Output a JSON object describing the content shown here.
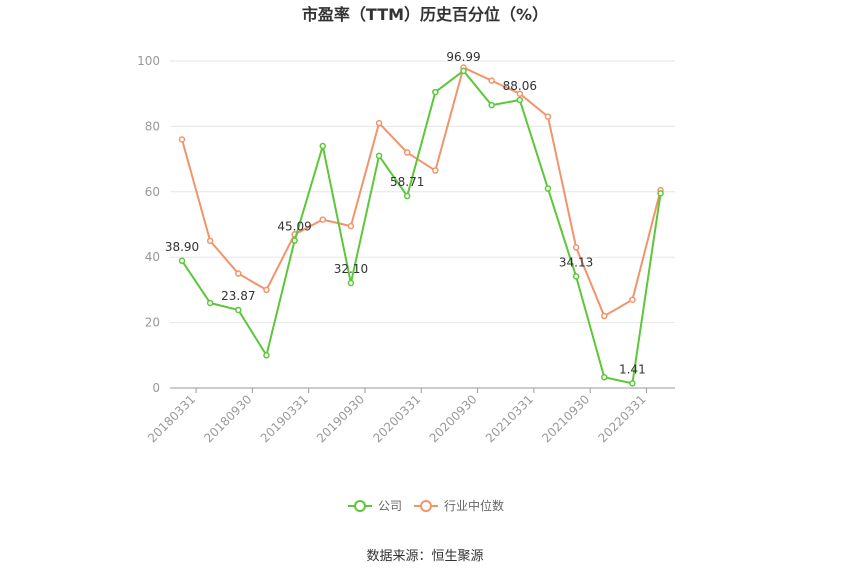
{
  "chart_data": {
    "type": "line",
    "title": "市盈率（TTM）历史百分位（%）",
    "xlabel": "",
    "ylabel": "",
    "ylim": [
      0,
      100
    ],
    "yticks": [
      0,
      20,
      40,
      60,
      80,
      100
    ],
    "x_tick_labels": [
      "20180331",
      "20180930",
      "20190331",
      "20190930",
      "20200331",
      "20200930",
      "20210331",
      "20210930",
      "20220331"
    ],
    "categories": [
      "20180331",
      "20180630",
      "20180930",
      "20181231",
      "20190331",
      "20190630",
      "20190930",
      "20191231",
      "20200331",
      "20200630",
      "20200930",
      "20201231",
      "20210331",
      "20210630",
      "20210930",
      "20211231",
      "20220331",
      "20220630"
    ],
    "series": [
      {
        "name": "公司",
        "color": "#5cc73a",
        "values": [
          38.9,
          26.0,
          23.87,
          10.0,
          45.09,
          74.0,
          32.1,
          71.0,
          58.71,
          90.5,
          96.99,
          86.5,
          88.06,
          61.0,
          34.13,
          3.3,
          1.41,
          59.5
        ]
      },
      {
        "name": "行业中位数",
        "color": "#f2946b",
        "values": [
          76.0,
          45.0,
          35.0,
          30.0,
          47.0,
          51.5,
          49.5,
          81.0,
          72.0,
          66.5,
          98.0,
          94.0,
          90.0,
          83.0,
          43.0,
          22.0,
          27.0,
          60.5
        ]
      }
    ],
    "data_labels": [
      {
        "index": 0,
        "text": "38.90"
      },
      {
        "index": 2,
        "text": "23.87"
      },
      {
        "index": 4,
        "text": "45.09"
      },
      {
        "index": 6,
        "text": "32.10"
      },
      {
        "index": 8,
        "text": "58.71"
      },
      {
        "index": 10,
        "text": "96.99"
      },
      {
        "index": 12,
        "text": "88.06"
      },
      {
        "index": 14,
        "text": "34.13"
      },
      {
        "index": 16,
        "text": "1.41"
      }
    ],
    "grid": true,
    "legend_position": "bottom"
  },
  "source": "数据来源：恒生聚源"
}
